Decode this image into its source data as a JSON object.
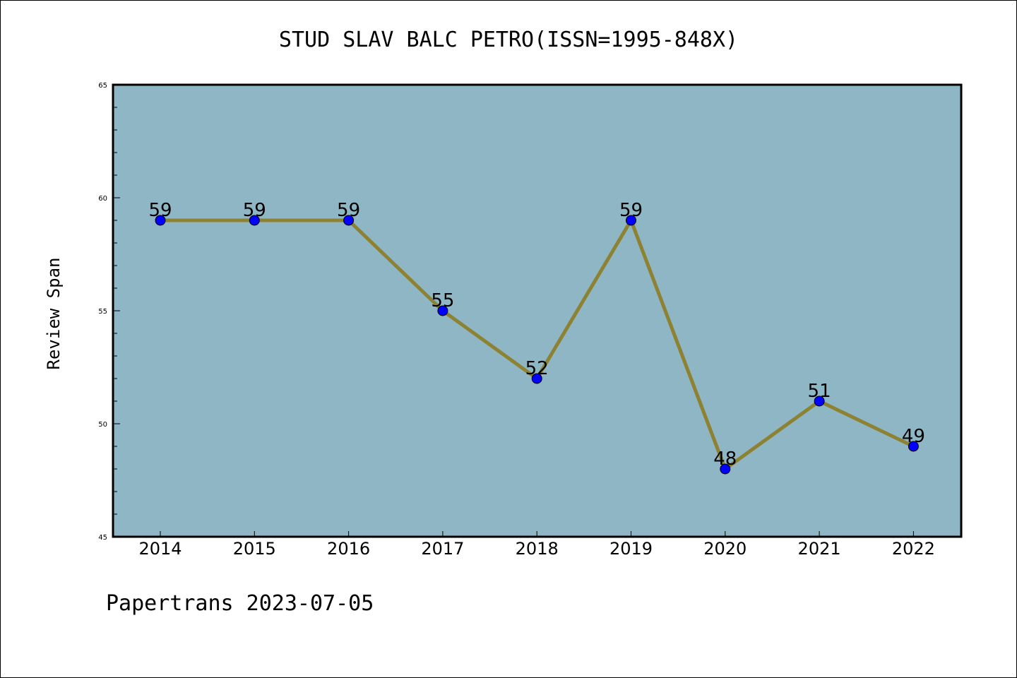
{
  "chart_data": {
    "type": "line",
    "title": "STUD SLAV BALC PETRO(ISSN=1995-848X)",
    "xlabel": "",
    "ylabel": "Review Span",
    "categories": [
      "2014",
      "2015",
      "2016",
      "2017",
      "2018",
      "2019",
      "2020",
      "2021",
      "2022"
    ],
    "series": [
      {
        "values": [
          59,
          59,
          59,
          55,
          52,
          59,
          48,
          51,
          49
        ]
      }
    ],
    "ylim": [
      45,
      65
    ],
    "yticks": [
      "45",
      "50",
      "55",
      "60",
      "65"
    ],
    "grid": false,
    "legend": "none",
    "data_labels": true,
    "colors": {
      "plot_background": "#8fb6c4",
      "line": "#8c8232",
      "marker": "#0000ff",
      "axes": "#000000"
    }
  },
  "footer": "Papertrans 2023-07-05"
}
